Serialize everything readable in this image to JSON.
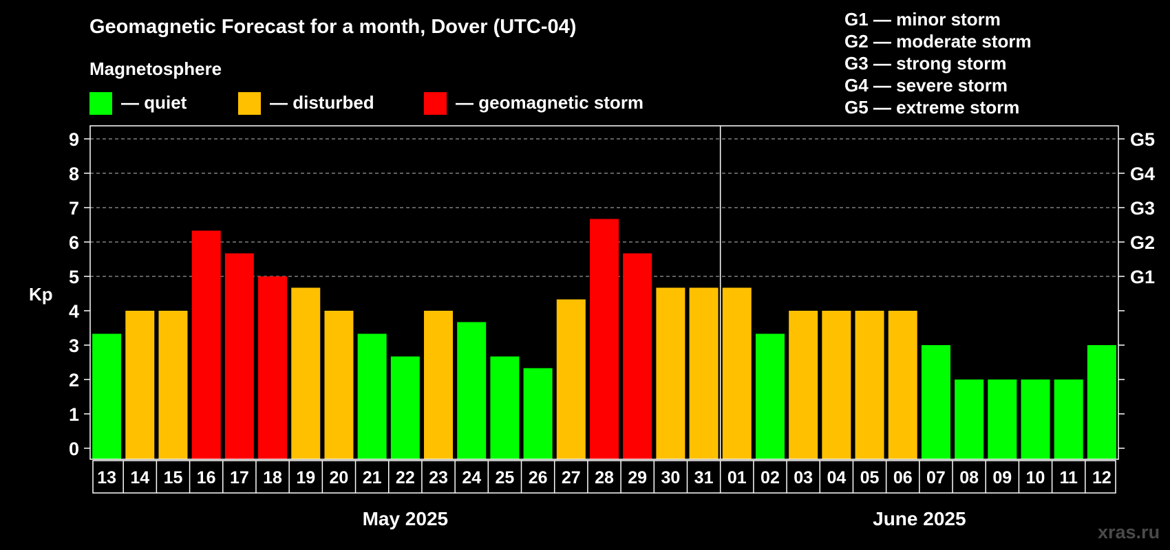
{
  "chart_data": {
    "type": "bar",
    "title": "Geomagnetic Forecast for a month, Dover (UTC-04)",
    "ylabel": "Kp",
    "ylim": [
      0,
      9
    ],
    "yticks": [
      "0",
      "1",
      "2",
      "3",
      "4",
      "5",
      "6",
      "7",
      "8",
      "9"
    ],
    "grid": "dashed horizontal gridlines from Kp 5 to 9",
    "legend": {
      "title": "Magnetosphere",
      "entries": [
        {
          "label": "— quiet",
          "color": "#00ff00"
        },
        {
          "label": "— disturbed",
          "color": "#ffc000"
        },
        {
          "label": "— geomagnetic storm",
          "color": "#ff0000"
        }
      ]
    },
    "g_scale_legend": [
      "G1 — minor storm",
      "G2 — moderate storm",
      "G3 — strong storm",
      "G4 — severe storm",
      "G5 — extreme storm"
    ],
    "g_axis": [
      {
        "label": "G1",
        "kp": 5
      },
      {
        "label": "G2",
        "kp": 6
      },
      {
        "label": "G3",
        "kp": 7
      },
      {
        "label": "G4",
        "kp": 8
      },
      {
        "label": "G5",
        "kp": 9
      }
    ],
    "categories": [
      "13",
      "14",
      "15",
      "16",
      "17",
      "18",
      "19",
      "20",
      "21",
      "22",
      "23",
      "24",
      "25",
      "26",
      "27",
      "28",
      "29",
      "30",
      "31",
      "01",
      "02",
      "03",
      "04",
      "05",
      "06",
      "07",
      "08",
      "09",
      "10",
      "11",
      "12"
    ],
    "values": [
      3.33,
      4,
      4,
      6.33,
      5.67,
      5,
      4.67,
      4,
      3.33,
      2.67,
      4,
      3.67,
      2.67,
      2.33,
      4.33,
      6.67,
      5.67,
      4.67,
      4.67,
      4.67,
      3.33,
      4,
      4,
      4,
      4,
      3,
      2,
      2,
      2,
      2,
      3
    ],
    "status": [
      "quiet",
      "disturbed",
      "disturbed",
      "storm",
      "storm",
      "storm",
      "disturbed",
      "disturbed",
      "quiet",
      "quiet",
      "disturbed",
      "quiet",
      "quiet",
      "quiet",
      "disturbed",
      "storm",
      "storm",
      "disturbed",
      "disturbed",
      "disturbed",
      "quiet",
      "disturbed",
      "disturbed",
      "disturbed",
      "disturbed",
      "quiet",
      "quiet",
      "quiet",
      "quiet",
      "quiet",
      "quiet"
    ],
    "colors": {
      "quiet": "#00ff00",
      "disturbed": "#ffc000",
      "storm": "#ff0000"
    },
    "months": [
      {
        "label": "May 2025",
        "first_index": 0,
        "last_index": 18
      },
      {
        "label": "June 2025",
        "first_index": 19,
        "last_index": 30
      }
    ],
    "month_divider_after_index": 18
  },
  "watermark": "xras.ru"
}
